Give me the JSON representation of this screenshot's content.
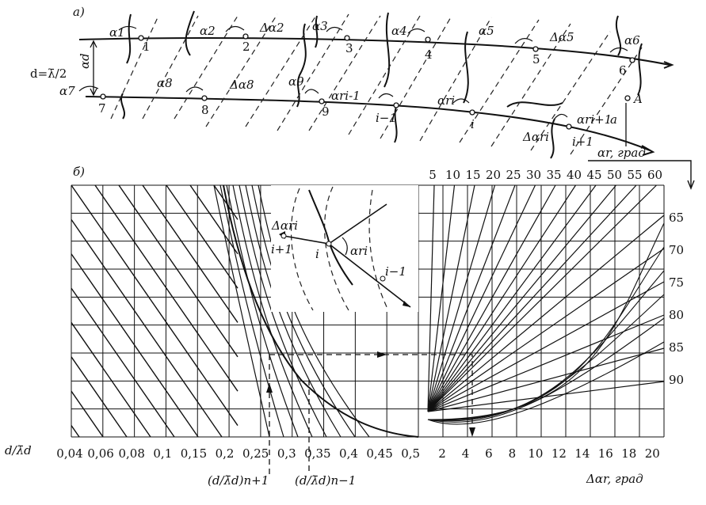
{
  "diagram_a": {
    "label": "а)",
    "d_label": "d=λ̄/2",
    "a_d_label": "αd",
    "upper_points": [
      "1",
      "2",
      "3",
      "4",
      "5",
      "6"
    ],
    "upper_angles": [
      "α1",
      "α2",
      "Δα2",
      "α3",
      "α4",
      "α5",
      "Δα5",
      "α6"
    ],
    "lower_points": [
      "7",
      "8",
      "9",
      "i−1",
      "i",
      "i+1"
    ],
    "lower_angles": [
      "α7",
      "α8",
      "Δα8",
      "α9",
      "αri-1",
      "αri",
      "Δαri",
      "αri+1"
    ],
    "point_A": "A",
    "a_label": "a"
  },
  "diagram_b": {
    "label": "б)",
    "left_axis_label": "d/λ̄d",
    "left_ticks": [
      "0,04",
      "0,06",
      "0,08",
      "0,1",
      "0,15",
      "0,2",
      "0,25",
      "0,3",
      "0,35",
      "0,4",
      "0,45",
      "0,5"
    ],
    "right_bottom_ticks": [
      "2",
      "4",
      "6",
      "8",
      "10",
      "12",
      "14",
      "16",
      "18",
      "20"
    ],
    "right_bottom_label": "Δαr, град",
    "top_label": "αr, град",
    "top_ticks": [
      "5",
      "10",
      "15",
      "20",
      "25",
      "30",
      "35",
      "40",
      "45",
      "50",
      "55",
      "60"
    ],
    "right_ticks": [
      "65",
      "70",
      "75",
      "80",
      "85",
      "90"
    ],
    "n_plus_1": "(d/λ̄d)n+1",
    "n_minus_1": "(d/λ̄d)n−1",
    "inset": {
      "delta": "Δαri",
      "alpha": "αri",
      "p_next": "i+1",
      "p_i": "i",
      "p_prev": "i−1"
    }
  }
}
